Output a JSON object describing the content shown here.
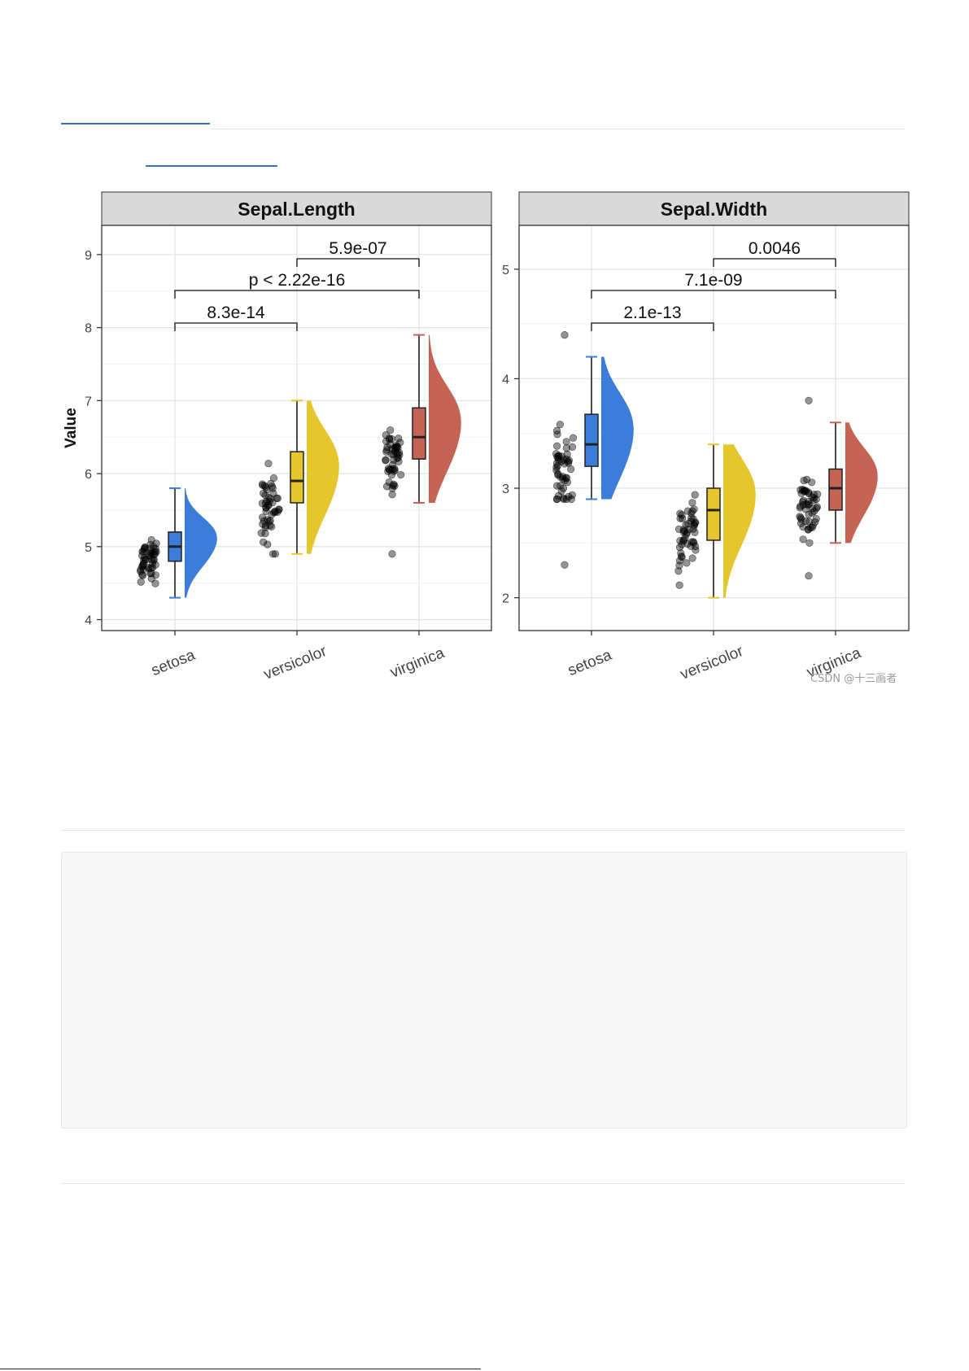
{
  "chart_data": [
    {
      "type": "raincloud",
      "title": "Sepal.Length",
      "xlabel": "",
      "ylabel": "Value",
      "categories": [
        "setosa",
        "versicolor",
        "virginica"
      ],
      "ylim": [
        3.85,
        9.4
      ],
      "yticks": [
        4,
        5,
        6,
        7,
        8,
        9
      ],
      "grid": true,
      "colors": [
        "#3b7dd8",
        "#e5c72d",
        "#c56455"
      ],
      "box": [
        {
          "category": "setosa",
          "min": 4.3,
          "q1": 4.8,
          "median": 5.0,
          "q3": 5.2,
          "max": 5.8
        },
        {
          "category": "versicolor",
          "min": 4.9,
          "q1": 5.6,
          "median": 5.9,
          "q3": 6.3,
          "max": 7.0
        },
        {
          "category": "virginica",
          "min": 5.6,
          "q1": 6.2,
          "median": 6.5,
          "q3": 6.9,
          "max": 7.9
        }
      ],
      "outliers": [
        {
          "category": "virginica",
          "value": 4.9
        }
      ],
      "comparisons": [
        {
          "groups": [
            "setosa",
            "versicolor"
          ],
          "label": "8.3e-14"
        },
        {
          "groups": [
            "setosa",
            "virginica"
          ],
          "label": "p < 2.22e-16"
        },
        {
          "groups": [
            "versicolor",
            "virginica"
          ],
          "label": "5.9e-07"
        }
      ]
    },
    {
      "type": "raincloud",
      "title": "Sepal.Width",
      "xlabel": "",
      "ylabel": "",
      "categories": [
        "setosa",
        "versicolor",
        "virginica"
      ],
      "ylim": [
        1.7,
        5.4
      ],
      "yticks": [
        2,
        3,
        4,
        5
      ],
      "grid": true,
      "colors": [
        "#3b7dd8",
        "#e5c72d",
        "#c56455"
      ],
      "box": [
        {
          "category": "setosa",
          "min": 2.9,
          "q1": 3.2,
          "median": 3.4,
          "q3": 3.675,
          "max": 4.2
        },
        {
          "category": "versicolor",
          "min": 2.0,
          "q1": 2.525,
          "median": 2.8,
          "q3": 3.0,
          "max": 3.4
        },
        {
          "category": "virginica",
          "min": 2.5,
          "q1": 2.8,
          "median": 3.0,
          "q3": 3.175,
          "max": 3.6
        }
      ],
      "outliers": [
        {
          "category": "setosa",
          "value": 4.4
        },
        {
          "category": "setosa",
          "value": 2.3
        },
        {
          "category": "virginica",
          "value": 3.8
        },
        {
          "category": "virginica",
          "value": 2.2
        }
      ],
      "comparisons": [
        {
          "groups": [
            "setosa",
            "versicolor"
          ],
          "label": "2.1e-13"
        },
        {
          "groups": [
            "setosa",
            "virginica"
          ],
          "label": "7.1e-09"
        },
        {
          "groups": [
            "versicolor",
            "virginica"
          ],
          "label": "0.0046"
        }
      ]
    }
  ],
  "page": {
    "watermark": "CSDN @十三画者"
  }
}
